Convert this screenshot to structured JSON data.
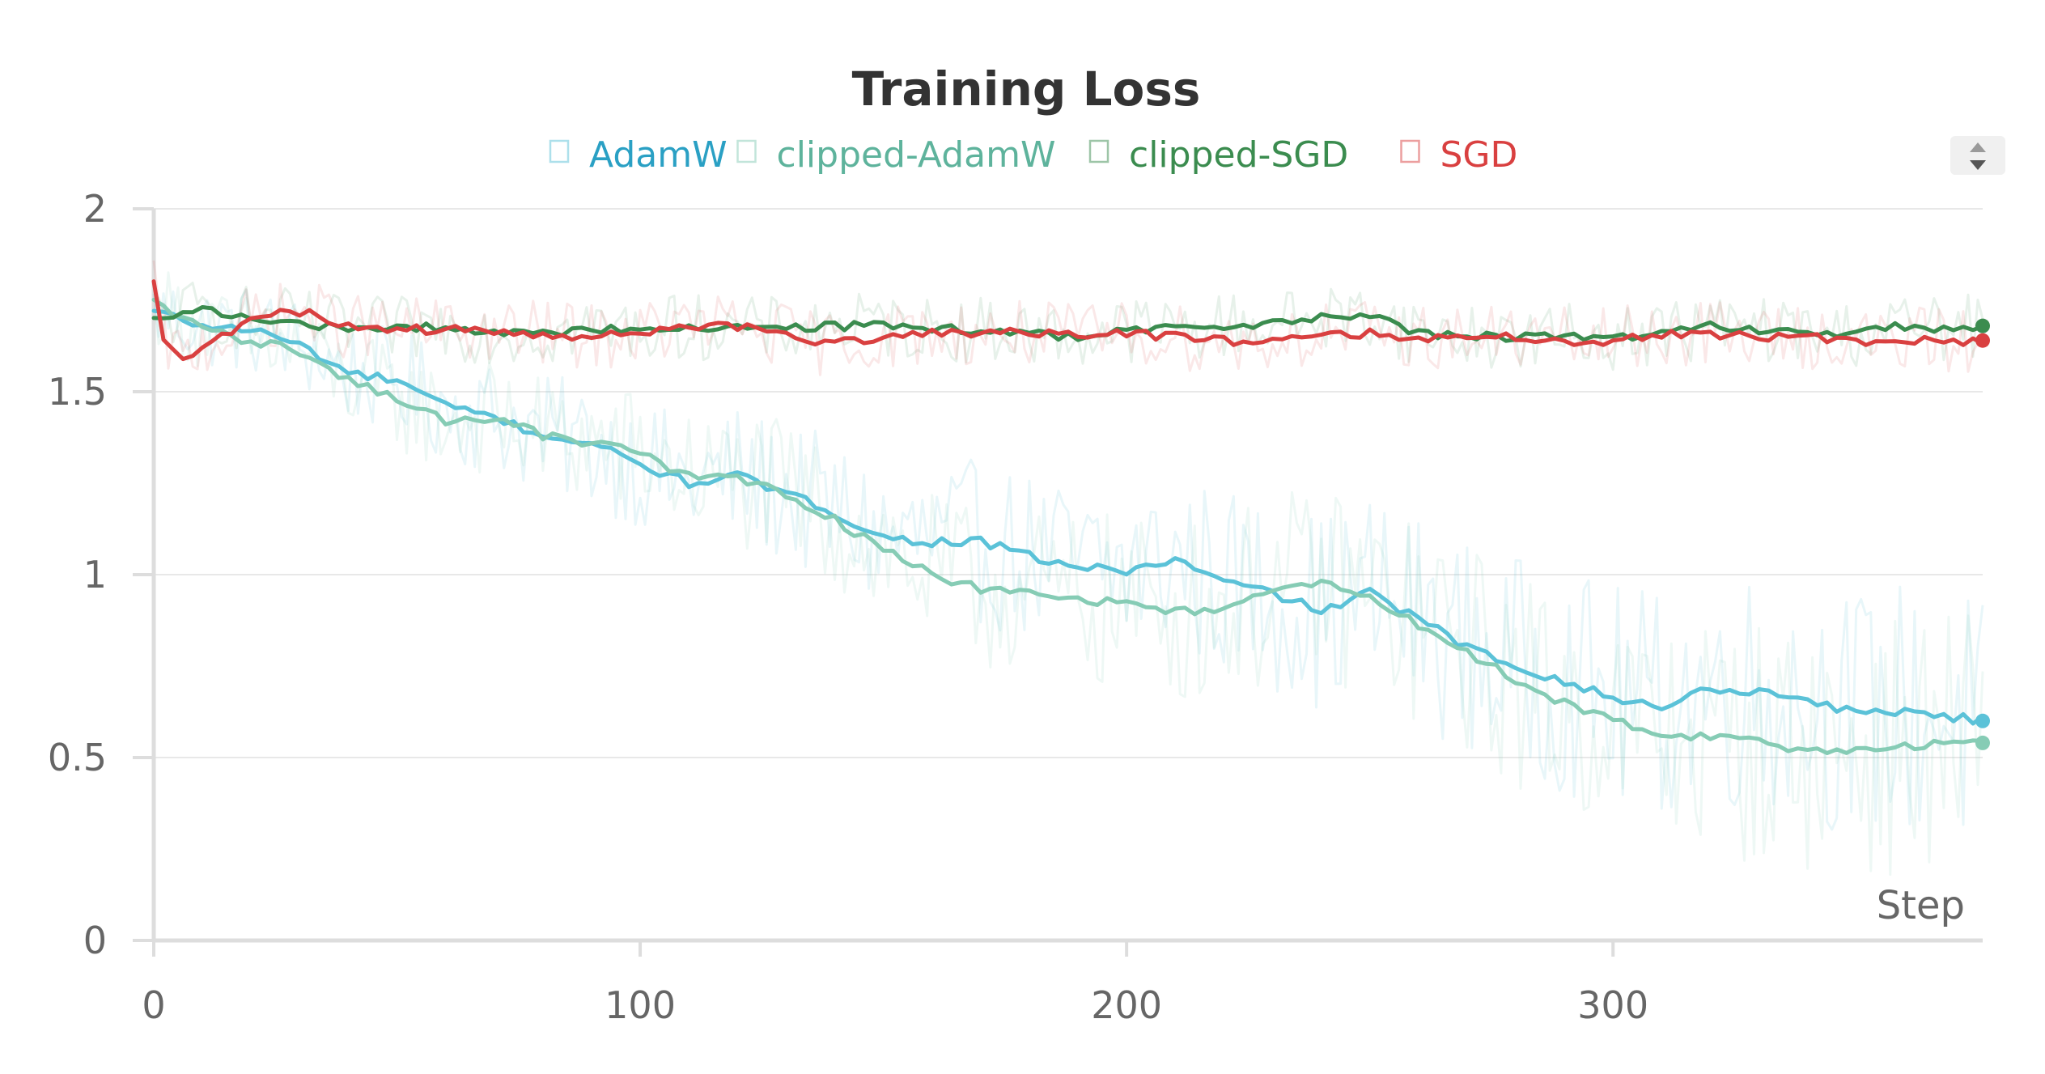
{
  "chart_data": {
    "type": "line",
    "title": "Training Loss",
    "xlabel": "Step",
    "ylabel": "",
    "xlim": [
      0,
      376
    ],
    "ylim": [
      0,
      2
    ],
    "x_ticks": [
      0,
      100,
      200,
      300
    ],
    "y_ticks": [
      0,
      0.5,
      1,
      1.5,
      2
    ],
    "y_tick_labels": [
      "0",
      "0.5",
      "1",
      "1.5",
      "2"
    ],
    "grid": true,
    "legend_position": "top-center",
    "series": [
      {
        "name": "AdamW",
        "color": "#5bc2d8",
        "legend_color": "#2aa0c4",
        "x": [
          0,
          10,
          20,
          30,
          40,
          50,
          60,
          70,
          80,
          90,
          100,
          110,
          120,
          130,
          140,
          150,
          160,
          170,
          180,
          190,
          200,
          210,
          220,
          230,
          240,
          250,
          260,
          270,
          280,
          290,
          300,
          310,
          320,
          330,
          340,
          350,
          360,
          370,
          376
        ],
        "values": [
          1.72,
          1.68,
          1.67,
          1.63,
          1.55,
          1.53,
          1.46,
          1.43,
          1.38,
          1.36,
          1.3,
          1.25,
          1.27,
          1.22,
          1.17,
          1.1,
          1.09,
          1.09,
          1.05,
          1.02,
          1.01,
          1.04,
          0.98,
          0.95,
          0.9,
          0.95,
          0.88,
          0.8,
          0.75,
          0.71,
          0.66,
          0.64,
          0.69,
          0.68,
          0.66,
          0.62,
          0.63,
          0.61,
          0.6
        ]
      },
      {
        "name": "clipped-AdamW",
        "color": "#86ccb5",
        "legend_color": "#5eb39c",
        "x": [
          0,
          10,
          20,
          30,
          40,
          50,
          60,
          70,
          80,
          90,
          100,
          110,
          120,
          130,
          140,
          150,
          160,
          170,
          180,
          190,
          200,
          210,
          220,
          230,
          240,
          250,
          260,
          270,
          280,
          290,
          300,
          310,
          320,
          330,
          340,
          350,
          360,
          370,
          376
        ],
        "values": [
          1.75,
          1.67,
          1.64,
          1.61,
          1.53,
          1.48,
          1.42,
          1.43,
          1.38,
          1.36,
          1.33,
          1.27,
          1.26,
          1.22,
          1.15,
          1.07,
          1.0,
          0.96,
          0.95,
          0.93,
          0.92,
          0.9,
          0.91,
          0.95,
          0.98,
          0.94,
          0.86,
          0.79,
          0.71,
          0.65,
          0.6,
          0.56,
          0.56,
          0.54,
          0.52,
          0.52,
          0.53,
          0.55,
          0.54
        ]
      },
      {
        "name": "clipped-SGD",
        "color": "#3b8c4f",
        "legend_color": "#3b8c4f",
        "x": [
          0,
          10,
          20,
          30,
          40,
          50,
          60,
          70,
          80,
          90,
          100,
          110,
          120,
          130,
          140,
          150,
          160,
          170,
          180,
          190,
          200,
          210,
          220,
          230,
          240,
          250,
          260,
          270,
          280,
          290,
          300,
          310,
          320,
          330,
          340,
          350,
          360,
          370,
          376
        ],
        "values": [
          1.7,
          1.72,
          1.7,
          1.69,
          1.67,
          1.67,
          1.68,
          1.66,
          1.66,
          1.67,
          1.67,
          1.68,
          1.67,
          1.67,
          1.68,
          1.68,
          1.67,
          1.67,
          1.66,
          1.65,
          1.67,
          1.67,
          1.68,
          1.69,
          1.7,
          1.71,
          1.66,
          1.65,
          1.65,
          1.65,
          1.65,
          1.66,
          1.68,
          1.67,
          1.66,
          1.66,
          1.68,
          1.67,
          1.68
        ]
      },
      {
        "name": "SGD",
        "color": "#d94040",
        "legend_color": "#d94040",
        "x": [
          0,
          2,
          6,
          10,
          15,
          20,
          25,
          30,
          40,
          50,
          60,
          70,
          80,
          90,
          100,
          110,
          120,
          130,
          140,
          150,
          160,
          170,
          180,
          190,
          200,
          210,
          220,
          230,
          240,
          250,
          260,
          270,
          280,
          290,
          300,
          310,
          320,
          330,
          340,
          350,
          360,
          370,
          376
        ],
        "values": [
          1.8,
          1.65,
          1.58,
          1.63,
          1.66,
          1.7,
          1.71,
          1.72,
          1.68,
          1.67,
          1.67,
          1.66,
          1.66,
          1.65,
          1.66,
          1.68,
          1.68,
          1.65,
          1.63,
          1.65,
          1.66,
          1.66,
          1.66,
          1.65,
          1.66,
          1.65,
          1.64,
          1.64,
          1.66,
          1.66,
          1.65,
          1.65,
          1.65,
          1.64,
          1.64,
          1.66,
          1.66,
          1.65,
          1.65,
          1.64,
          1.64,
          1.64,
          1.64
        ]
      }
    ]
  },
  "icons": {
    "legend_scroller": "up-down-arrows-icon"
  }
}
